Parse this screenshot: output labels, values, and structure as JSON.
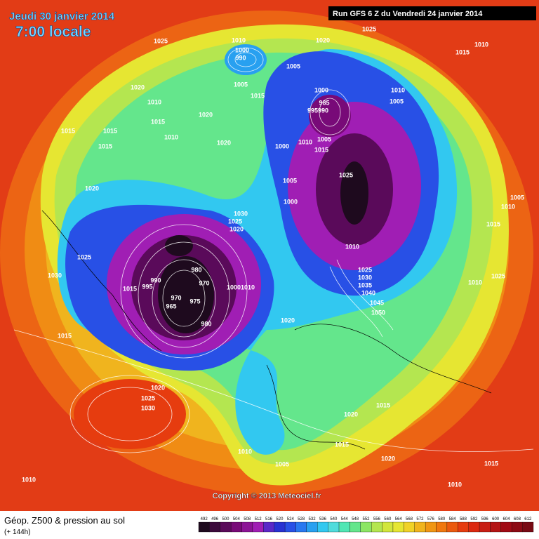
{
  "header": {
    "date": "Jeudi 30 janvier 2014",
    "time": "7:00 locale",
    "run": "Run GFS 6 Z du Vendredi 24 janvier 2014"
  },
  "footer": {
    "title": "Géop. Z500 & pression au sol",
    "lead": "(+ 144h)",
    "copyright": "Copyright © 2013 Meteociel.fr"
  },
  "isobar_labels": [
    1025,
    1010,
    1000,
    990,
    1020,
    1025,
    1015,
    1010,
    1005,
    1005,
    1015,
    1020,
    1010,
    1000,
    985,
    "995990",
    1010,
    1005,
    1020,
    1015,
    1015,
    1015,
    1015,
    1010,
    1020,
    1005,
    1010,
    1015,
    1000,
    1025,
    1005,
    1020,
    1000,
    1005,
    1010,
    1015,
    1030,
    1025,
    1020,
    1010,
    1025,
    980,
    1030,
    1025,
    1030,
    990,
    995,
    1015,
    970,
    1000,
    1010,
    1035,
    1010,
    1025,
    1040,
    970,
    975,
    965,
    1045,
    1050,
    1020,
    980,
    1015,
    1020,
    1025,
    1030,
    1015,
    1020,
    1015,
    1010,
    1020,
    1005,
    1015,
    1010,
    1010
  ],
  "scale": {
    "values": [
      492,
      496,
      500,
      504,
      508,
      512,
      516,
      520,
      524,
      528,
      532,
      536,
      540,
      544,
      548,
      552,
      556,
      560,
      564,
      568,
      572,
      576,
      580,
      584,
      588,
      592,
      596,
      600,
      604,
      608,
      612
    ],
    "colors": [
      "#1e0a1e",
      "#3c0a3c",
      "#5a0a5a",
      "#780a78",
      "#8c1496",
      "#a01eb4",
      "#5a28c8",
      "#2832d2",
      "#2850e6",
      "#2878f0",
      "#28a0f0",
      "#32c8f0",
      "#50dcdc",
      "#50e6b4",
      "#64e68c",
      "#8ce664",
      "#b4e650",
      "#d2e63c",
      "#e6e632",
      "#f0d228",
      "#f0b41e",
      "#f09614",
      "#f0780f",
      "#eb5a0f",
      "#e63c0f",
      "#dc280f",
      "#c81e14",
      "#b41414",
      "#a00a14",
      "#8c0a14",
      "#780a14"
    ]
  }
}
